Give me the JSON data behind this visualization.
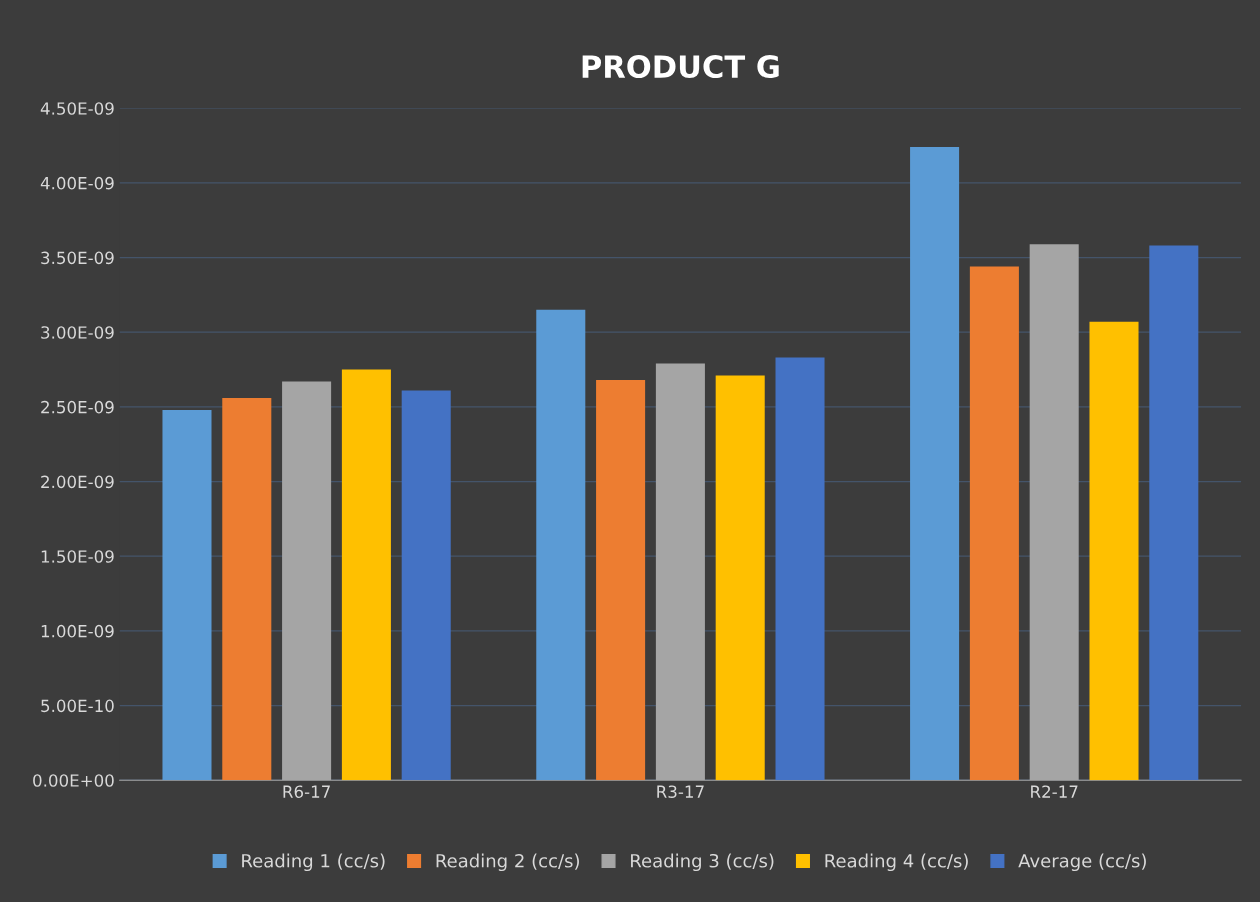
{
  "chart_data": {
    "type": "bar",
    "title": "PRODUCT G",
    "categories": [
      "R6-17",
      "R3-17",
      "R2-17"
    ],
    "series": [
      {
        "name": "Reading 1 (cc/s)",
        "color": "#5b9bd5",
        "values": [
          2.48e-09,
          3.15e-09,
          4.24e-09
        ]
      },
      {
        "name": "Reading 2 (cc/s)",
        "color": "#ed7d31",
        "values": [
          2.56e-09,
          2.68e-09,
          3.44e-09
        ]
      },
      {
        "name": "Reading 3 (cc/s)",
        "color": "#a5a5a5",
        "values": [
          2.67e-09,
          2.79e-09,
          3.59e-09
        ]
      },
      {
        "name": "Reading 4 (cc/s)",
        "color": "#ffc000",
        "values": [
          2.75e-09,
          2.71e-09,
          3.07e-09
        ]
      },
      {
        "name": "Average (cc/s)",
        "color": "#4472c4",
        "values": [
          2.61e-09,
          2.83e-09,
          3.58e-09
        ]
      }
    ],
    "ylim": [
      0,
      4.5e-09
    ],
    "yticks": [
      {
        "value": 0,
        "label": "0.00E+00"
      },
      {
        "value": 5e-10,
        "label": "5.00E-10"
      },
      {
        "value": 1e-09,
        "label": "1.00E-09"
      },
      {
        "value": 1.5e-09,
        "label": "1.50E-09"
      },
      {
        "value": 2e-09,
        "label": "2.00E-09"
      },
      {
        "value": 2.5e-09,
        "label": "2.50E-09"
      },
      {
        "value": 3e-09,
        "label": "3.00E-09"
      },
      {
        "value": 3.5e-09,
        "label": "3.50E-09"
      },
      {
        "value": 4e-09,
        "label": "4.00E-09"
      },
      {
        "value": 4.5e-09,
        "label": "4.50E-09"
      }
    ],
    "grid": "y",
    "legend": "bottom"
  }
}
